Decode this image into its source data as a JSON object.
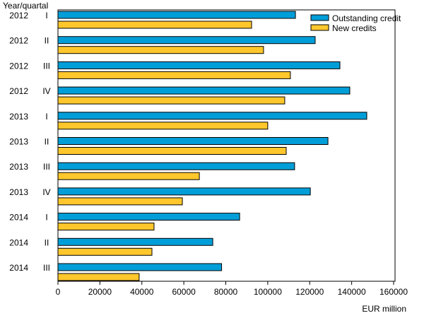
{
  "chart_data": {
    "type": "bar",
    "orientation": "horizontal",
    "ylabel": "Year/quartal",
    "xlabel": "EUR million",
    "categories": [
      {
        "year": "2012",
        "quarter": "I"
      },
      {
        "year": "2012",
        "quarter": "II"
      },
      {
        "year": "2012",
        "quarter": "III"
      },
      {
        "year": "2012",
        "quarter": "IV"
      },
      {
        "year": "2013",
        "quarter": "I"
      },
      {
        "year": "2013",
        "quarter": "II"
      },
      {
        "year": "2013",
        "quarter": "III"
      },
      {
        "year": "2013",
        "quarter": "IV"
      },
      {
        "year": "2014",
        "quarter": "I"
      },
      {
        "year": "2014",
        "quarter": "II"
      },
      {
        "year": "2014",
        "quarter": "III"
      }
    ],
    "series": [
      {
        "name": "Outstanding credit",
        "color": "#009ED8",
        "values": [
          113200,
          122600,
          134400,
          139100,
          147200,
          128700,
          112800,
          120300,
          86600,
          73800,
          78000
        ]
      },
      {
        "name": "New credits",
        "color": "#FFC72C",
        "values": [
          92300,
          98000,
          110800,
          108100,
          100000,
          108800,
          67400,
          59300,
          45800,
          44800,
          38700
        ]
      }
    ],
    "xlim": [
      0,
      160000
    ],
    "xticks": [
      "0",
      "20000",
      "40000",
      "60000",
      "80000",
      "100000",
      "120000",
      "140000",
      "160000"
    ],
    "grid": false,
    "legend": "top-right"
  }
}
